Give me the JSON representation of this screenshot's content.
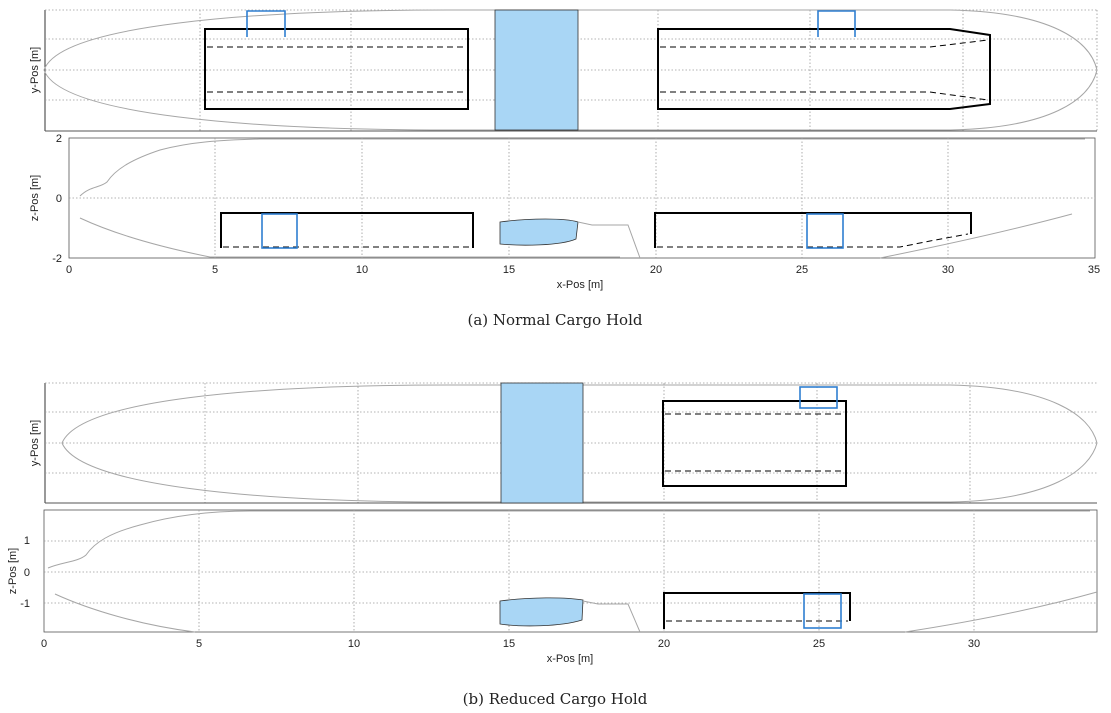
{
  "figure_a": {
    "caption": "(a) Normal Cargo Hold",
    "top": {
      "ylabel": "y-Pos [m]"
    },
    "bottom": {
      "ylabel": "z-Pos [m]",
      "xlabel": "x-Pos [m]",
      "xticks": [
        "0",
        "5",
        "10",
        "15",
        "20",
        "25",
        "30",
        "35"
      ],
      "yticks": [
        "2",
        "0",
        "-2"
      ]
    }
  },
  "figure_b": {
    "caption": "(b) Reduced Cargo Hold",
    "top": {
      "ylabel": "y-Pos [m]"
    },
    "bottom": {
      "ylabel": "z-Pos [m]",
      "xlabel": "x-Pos [m]",
      "xticks": [
        "0",
        "5",
        "10",
        "15",
        "20",
        "25",
        "30"
      ],
      "yticks": [
        "1",
        "0",
        "-1"
      ]
    }
  },
  "colors": {
    "hull": "#a6a6a6",
    "tank_fill": "#a9d6f5",
    "outline_blue": "#2f7fd1",
    "cargo": "#000000"
  }
}
